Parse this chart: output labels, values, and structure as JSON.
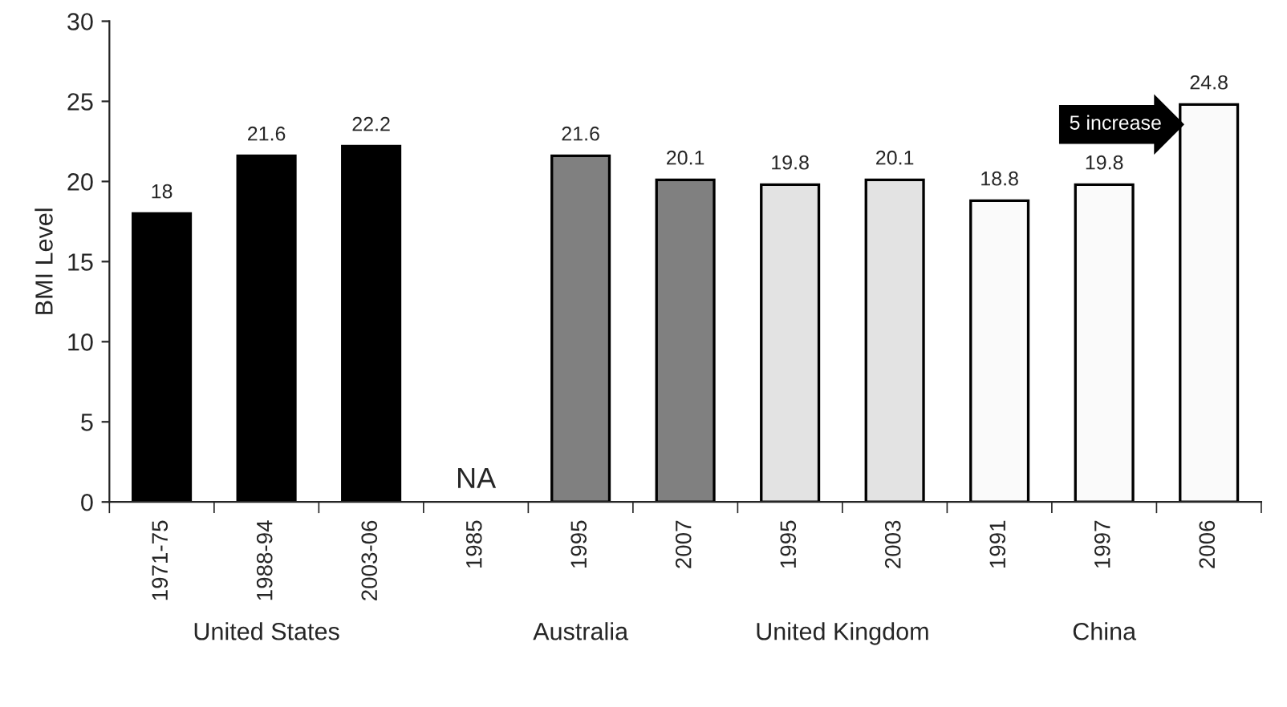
{
  "chart_data": {
    "type": "bar",
    "ylabel": "BMI Level",
    "categories": [
      "1971-75",
      "1988-94",
      "2003-06",
      "1985",
      "1995",
      "2007",
      "1995",
      "2003",
      "1991",
      "1997",
      "2006"
    ],
    "values": [
      18,
      21.6,
      22.2,
      null,
      21.6,
      20.1,
      19.8,
      20.1,
      18.8,
      19.8,
      24.8
    ],
    "colors": [
      "#000000",
      "#000000",
      "#000000",
      "#808080",
      "#808080",
      "#808080",
      "#e3e3e3",
      "#e3e3e3",
      "#fafafa",
      "#fafafa",
      "#fafafa"
    ],
    "ylim": [
      0,
      30
    ],
    "yticks": [
      0,
      5,
      10,
      15,
      20,
      25,
      30
    ],
    "grid": false,
    "data_labels": true,
    "annotations": [
      "United States",
      "Australia",
      "United Kingdom",
      "China",
      "NA",
      "5 increase"
    ]
  }
}
